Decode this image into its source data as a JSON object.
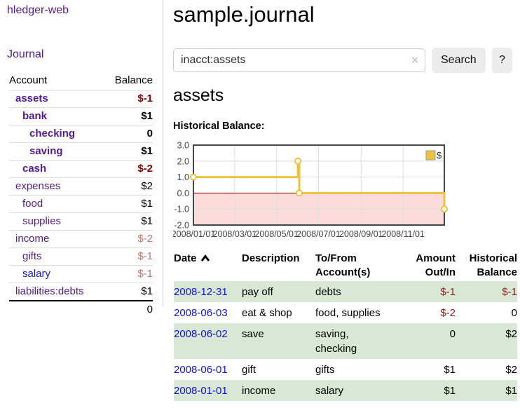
{
  "colors": {
    "grid": "#dddddd",
    "chart_border": "#474747",
    "zero_line": "#8b0000",
    "neg_region": "#fcdbdb",
    "series_gold": "#edc240",
    "axis_text": "#444444"
  },
  "sidebar": {
    "app_title": "hledger-web",
    "journal_link": "Journal",
    "accounts": {
      "col_account": "Account",
      "col_balance": "Balance",
      "rows": [
        {
          "name": "assets",
          "balance": "$-1",
          "depth": 1,
          "name_style": "bold visited",
          "balance_style": "bold neg-strong"
        },
        {
          "name": "bank",
          "balance": "$1",
          "depth": 2,
          "name_style": "bold visited",
          "balance_style": "bold"
        },
        {
          "name": "checking",
          "balance": "0",
          "depth": 3,
          "name_style": "bold visited",
          "balance_style": "bold"
        },
        {
          "name": "saving",
          "balance": "$1",
          "depth": 3,
          "name_style": "bold visited",
          "balance_style": "bold"
        },
        {
          "name": "cash",
          "balance": "$-2",
          "depth": 2,
          "name_style": "bold visited",
          "balance_style": "bold neg-strong"
        },
        {
          "name": "expenses",
          "balance": "$2",
          "depth": 1,
          "name_style": "visited",
          "balance_style": ""
        },
        {
          "name": "food",
          "balance": "$1",
          "depth": 2,
          "name_style": "visited",
          "balance_style": ""
        },
        {
          "name": "supplies",
          "balance": "$1",
          "depth": 2,
          "name_style": "visited",
          "balance_style": ""
        },
        {
          "name": "income",
          "balance": "$-2",
          "depth": 1,
          "name_style": "visited",
          "balance_style": "neg-faded"
        },
        {
          "name": "gifts",
          "balance": "$-1",
          "depth": 2,
          "name_style": "visited",
          "balance_style": "neg-faded"
        },
        {
          "name": "salary",
          "balance": "$-1",
          "depth": 2,
          "name_style": "blue",
          "balance_style": "neg-faded"
        },
        {
          "name": "liabilities:debts",
          "balance": "$1",
          "depth": 1,
          "name_style": "visited",
          "balance_style": ""
        }
      ],
      "total": "0"
    }
  },
  "main": {
    "title": "sample.journal",
    "search": {
      "value": "inacct:assets",
      "clear_label": "×",
      "search_button": "Search",
      "help_button": "?"
    },
    "account_heading": "assets",
    "chart_heading": "Historical Balance:"
  },
  "chart_data": {
    "type": "line",
    "step": true,
    "title": "Historical Balance",
    "xlabel": "",
    "ylabel": "",
    "ylim": [
      -2,
      3
    ],
    "xlim_days": [
      1,
      366
    ],
    "grid": true,
    "legend_position": "top-right",
    "series": [
      {
        "name": "$",
        "points": [
          {
            "date": "2008-01-01",
            "day": 1,
            "value": 1.0
          },
          {
            "date": "2008-06-01",
            "day": 153,
            "value": 2.0
          },
          {
            "date": "2008-06-03",
            "day": 155,
            "value": 0.0
          },
          {
            "date": "2008-12-31",
            "day": 366,
            "value": -1.0
          }
        ]
      }
    ],
    "x_ticks": [
      {
        "label": "2008/01/01",
        "day": 1
      },
      {
        "label": "2008/03/01",
        "day": 61
      },
      {
        "label": "2008/05/01",
        "day": 122
      },
      {
        "label": "2008/07/01",
        "day": 183
      },
      {
        "label": "2008/09/01",
        "day": 245
      },
      {
        "label": "2008/11/01",
        "day": 306
      }
    ],
    "y_ticks": [
      {
        "label": "3.0",
        "value": 3
      },
      {
        "label": "2.0",
        "value": 2
      },
      {
        "label": "1.0",
        "value": 1
      },
      {
        "label": "0.0",
        "value": 0
      },
      {
        "label": "-1.0",
        "value": -1
      },
      {
        "label": "-2.0",
        "value": -2
      }
    ]
  },
  "transactions": {
    "headers": {
      "date": "Date",
      "description": "Description",
      "accounts": "To/From\nAccount(s)",
      "amount": "Amount\nOut/In",
      "balance": "Historical\nBalance"
    },
    "rows": [
      {
        "date": "2008-12-31",
        "description": "pay off",
        "accounts": "debts",
        "amount": "$-1",
        "balance": "$-1",
        "amount_neg": true,
        "balance_neg": true,
        "shaded": true
      },
      {
        "date": "2008-06-03",
        "description": "eat & shop",
        "accounts": "food, supplies",
        "amount": "$-2",
        "balance": "0",
        "amount_neg": true,
        "balance_neg": false,
        "shaded": false
      },
      {
        "date": "2008-06-02",
        "description": "save",
        "accounts": "saving,\nchecking",
        "amount": "0",
        "balance": "$2",
        "amount_neg": false,
        "balance_neg": false,
        "shaded": true
      },
      {
        "date": "2008-06-01",
        "description": "gift",
        "accounts": "gifts",
        "amount": "$1",
        "balance": "$2",
        "amount_neg": false,
        "balance_neg": false,
        "shaded": false
      },
      {
        "date": "2008-01-01",
        "description": "income",
        "accounts": "salary",
        "amount": "$1",
        "balance": "$1",
        "amount_neg": false,
        "balance_neg": false,
        "shaded": true
      }
    ]
  }
}
